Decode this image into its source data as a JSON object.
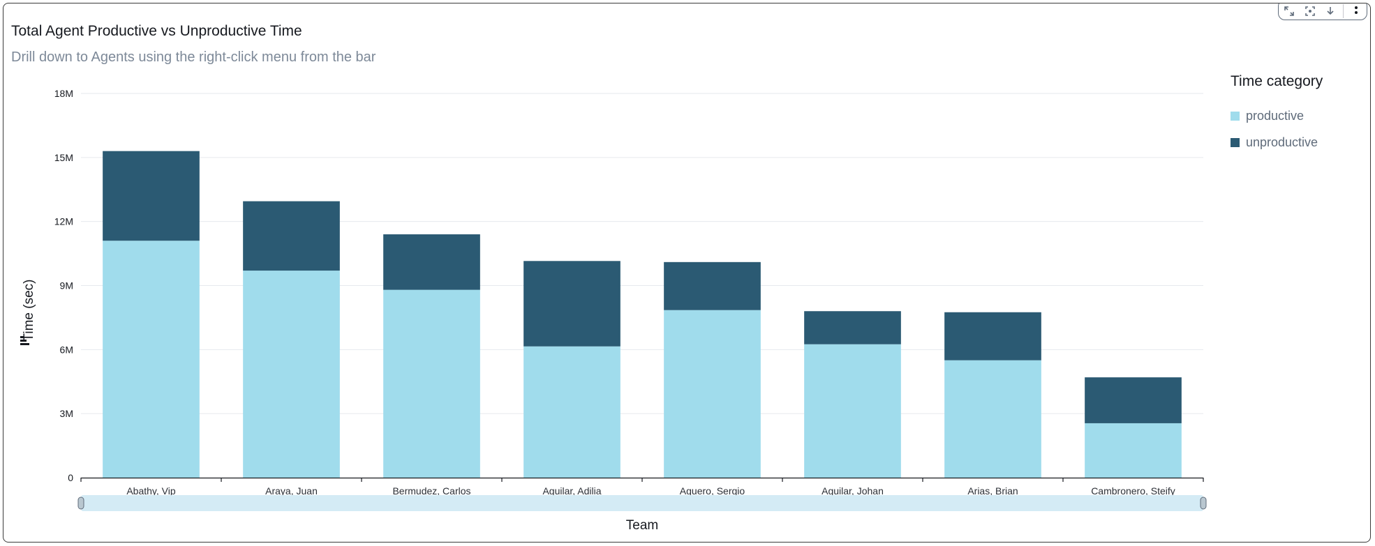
{
  "header": {
    "title": "Total Agent Productive vs Unproductive Time",
    "subtitle": "Drill down to Agents using the right-click menu from the bar"
  },
  "toolbar": {
    "icons": [
      "expand-icon",
      "focus-icon",
      "download-icon",
      "more-options-icon"
    ]
  },
  "legend": {
    "title": "Time category",
    "items": [
      {
        "label": "productive",
        "color": "#a0dcec"
      },
      {
        "label": "unproductive",
        "color": "#2b5a73"
      }
    ]
  },
  "colors": {
    "productive": "#a0dcec",
    "unproductive": "#2b5a73",
    "grid": "#e6e9ee",
    "scrollbar": "#d4ebf5"
  },
  "chart_data": {
    "type": "bar",
    "stacked": true,
    "title": "Total Agent Productive vs Unproductive Time",
    "subtitle": "Drill down to Agents using the right-click menu from the bar",
    "xlabel": "Team",
    "ylabel": "Time (sec)",
    "categories": [
      "Abathy, Vip",
      "Araya, Juan",
      "Bermudez, Carlos",
      "Aguilar, Adilia",
      "Aguero, Sergio",
      "Aguilar, Johan",
      "Arias, Brian",
      "Cambronero, Steify"
    ],
    "series": [
      {
        "name": "productive",
        "values": [
          11100000,
          9700000,
          8800000,
          6150000,
          7850000,
          6250000,
          5500000,
          2550000
        ]
      },
      {
        "name": "unproductive",
        "values": [
          4200000,
          3250000,
          2600000,
          4000000,
          2250000,
          1550000,
          2250000,
          2150000
        ]
      }
    ],
    "ylim": [
      0,
      18000000
    ],
    "yticks": [
      0,
      3000000,
      6000000,
      9000000,
      12000000,
      15000000,
      18000000
    ],
    "ytick_labels": [
      "0",
      "3M",
      "6M",
      "9M",
      "12M",
      "15M",
      "18M"
    ],
    "grid": true,
    "legend_position": "right"
  }
}
